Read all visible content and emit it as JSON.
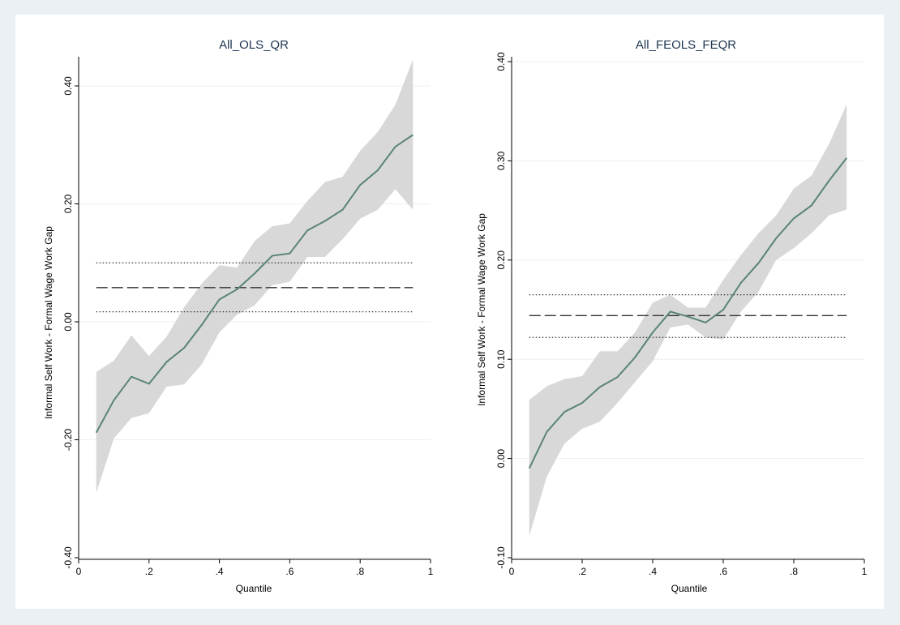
{
  "chart_data": [
    {
      "type": "line",
      "title": "All_OLS_QR",
      "xlabel": "Quantile",
      "ylabel": "Informal Self Work - Formal Wage Work Gap",
      "xlim": [
        0,
        1
      ],
      "ylim": [
        -0.4,
        0.4
      ],
      "x_ticks": [
        "0",
        ".2",
        ".4",
        ".6",
        ".8",
        "1"
      ],
      "y_ticks": [
        "-0.40",
        "-0.20",
        "0.00",
        "0.20",
        "0.40"
      ],
      "grid": true,
      "series": [
        {
          "role": "quantile_estimate",
          "x": [
            0.05,
            0.1,
            0.15,
            0.2,
            0.25,
            0.3,
            0.35,
            0.4,
            0.45,
            0.5,
            0.55,
            0.6,
            0.65,
            0.7,
            0.75,
            0.8,
            0.85,
            0.9,
            0.95
          ],
          "values": [
            -0.188,
            -0.133,
            -0.093,
            -0.105,
            -0.068,
            -0.044,
            -0.005,
            0.038,
            0.055,
            0.082,
            0.112,
            0.116,
            0.155,
            0.171,
            0.19,
            0.232,
            0.257,
            0.297,
            0.317
          ],
          "lower": [
            -0.29,
            -0.198,
            -0.163,
            -0.155,
            -0.11,
            -0.106,
            -0.072,
            -0.018,
            0.012,
            0.028,
            0.062,
            0.068,
            0.11,
            0.11,
            0.14,
            0.175,
            0.19,
            0.225,
            0.19
          ],
          "upper": [
            -0.085,
            -0.066,
            -0.023,
            -0.058,
            -0.025,
            0.025,
            0.065,
            0.096,
            0.092,
            0.137,
            0.162,
            0.167,
            0.205,
            0.237,
            0.246,
            0.29,
            0.322,
            0.368,
            0.445
          ]
        },
        {
          "role": "ols_estimate",
          "y": 0.058
        },
        {
          "role": "ols_ci_upper",
          "y": 0.1
        },
        {
          "role": "ols_ci_lower",
          "y": 0.017
        }
      ]
    },
    {
      "type": "line",
      "title": "All_FEOLS_FEQR",
      "xlabel": "Quantile",
      "ylabel": "Informal Self Work - Formal Wage Work Gap",
      "xlim": [
        0,
        1
      ],
      "ylim": [
        -0.1,
        0.4
      ],
      "x_ticks": [
        "0",
        ".2",
        ".4",
        ".6",
        ".8",
        "1"
      ],
      "y_ticks": [
        "-0.10",
        "0.00",
        "0.10",
        "0.20",
        "0.30",
        "0.40"
      ],
      "grid": true,
      "series": [
        {
          "role": "quantile_estimate",
          "x": [
            0.05,
            0.1,
            0.15,
            0.2,
            0.25,
            0.3,
            0.35,
            0.4,
            0.45,
            0.5,
            0.55,
            0.6,
            0.65,
            0.7,
            0.75,
            0.8,
            0.85,
            0.9,
            0.95
          ],
          "values": [
            -0.01,
            0.027,
            0.047,
            0.056,
            0.072,
            0.082,
            0.102,
            0.127,
            0.148,
            0.143,
            0.137,
            0.15,
            0.177,
            0.197,
            0.222,
            0.242,
            0.255,
            0.28,
            0.303
          ],
          "lower": [
            -0.078,
            -0.018,
            0.015,
            0.03,
            0.037,
            0.056,
            0.077,
            0.098,
            0.132,
            0.135,
            0.122,
            0.12,
            0.148,
            0.168,
            0.2,
            0.212,
            0.227,
            0.245,
            0.251
          ],
          "upper": [
            0.059,
            0.073,
            0.08,
            0.083,
            0.108,
            0.108,
            0.127,
            0.157,
            0.165,
            0.152,
            0.152,
            0.18,
            0.205,
            0.227,
            0.245,
            0.272,
            0.285,
            0.317,
            0.357
          ]
        },
        {
          "role": "ols_estimate",
          "y": 0.144
        },
        {
          "role": "ols_ci_upper",
          "y": 0.165
        },
        {
          "role": "ols_ci_lower",
          "y": 0.122
        }
      ]
    }
  ]
}
